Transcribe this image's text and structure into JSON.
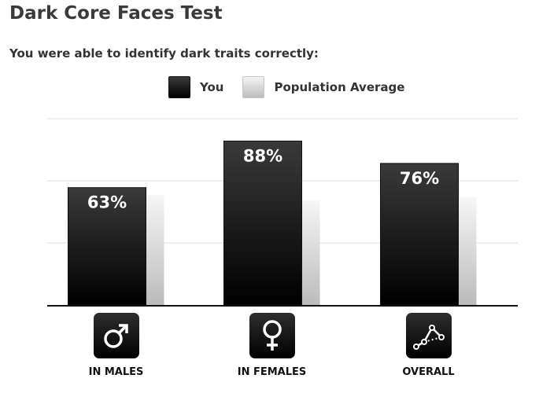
{
  "title": "Dark Core Faces Test",
  "subtitle": "You were able to identify dark traits correctly:",
  "colors": {
    "you": "#000000",
    "population": "#cccccc",
    "grid": "#dddddd",
    "axis": "#111111"
  },
  "chart_data": {
    "type": "bar",
    "categories": [
      "IN MALES",
      "IN FEMALES",
      "OVERALL"
    ],
    "category_icons": [
      "male-symbol-icon",
      "female-symbol-icon",
      "network-graph-icon"
    ],
    "series": [
      {
        "name": "You",
        "values": [
          63,
          88,
          76
        ],
        "data_labels": [
          "63%",
          "88%",
          "76%"
        ]
      },
      {
        "name": "Population Average",
        "values": [
          59,
          56,
          58
        ]
      }
    ],
    "ylim": [
      0,
      100
    ],
    "grid": true,
    "legend": "top-center",
    "xlabel": "",
    "ylabel": ""
  }
}
